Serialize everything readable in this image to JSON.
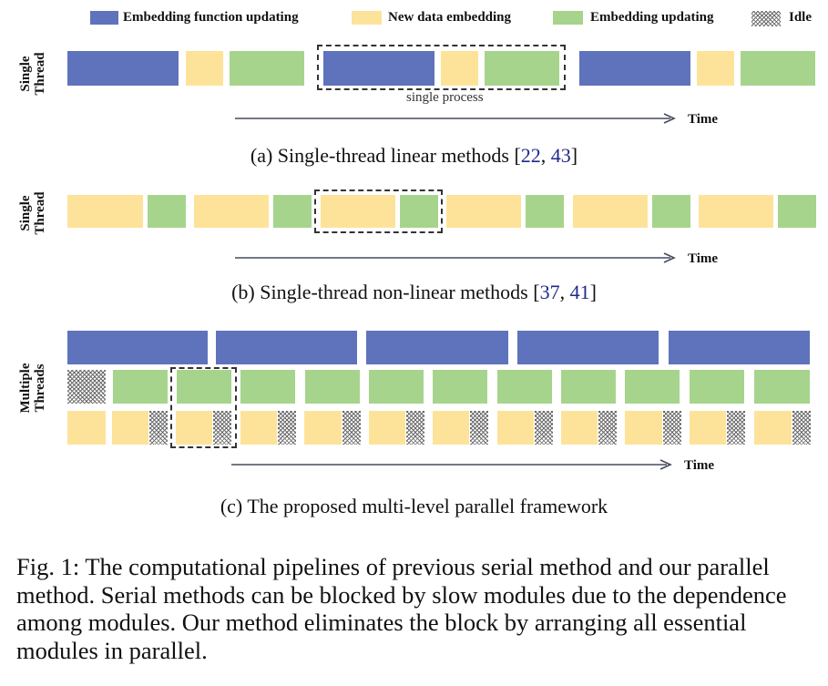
{
  "legend": {
    "embedding_function_updating": "Embedding function updating",
    "new_data_embedding": "New data embedding",
    "embedding_updating": "Embedding updating",
    "idle": "Idle"
  },
  "colors": {
    "embedding_function_updating": "#5f72bc",
    "new_data_embedding": "#fde39a",
    "embedding_updating": "#a7d48c",
    "idle_pattern": "#6a6a6a"
  },
  "panel_a": {
    "row_label_line1": "Single",
    "row_label_line2": "Thread",
    "process_label": "single process",
    "time_label": "Time",
    "caption_prefix": "(a)  Single-thread linear methods [",
    "cite1": "22",
    "cite_sep": ", ",
    "cite2": "43",
    "caption_suffix": "]"
  },
  "panel_b": {
    "row_label_line1": "Single",
    "row_label_line2": "Thread",
    "time_label": "Time",
    "caption_prefix": "(b)  Single-thread non-linear methods [",
    "cite1": "37",
    "cite_sep": ", ",
    "cite2": "41",
    "caption_suffix": "]"
  },
  "panel_c": {
    "row_label_line1": "Multiple",
    "row_label_line2": "Threads",
    "time_label": "Time",
    "caption": "(c)  The proposed multi-level parallel framework"
  },
  "figure_caption": "Fig. 1: The computational pipelines of previous serial method and our parallel method. Serial methods can be blocked by slow modules due to the dependence among modules. Our method eliminates the block by arranging all essential modules in parallel."
}
